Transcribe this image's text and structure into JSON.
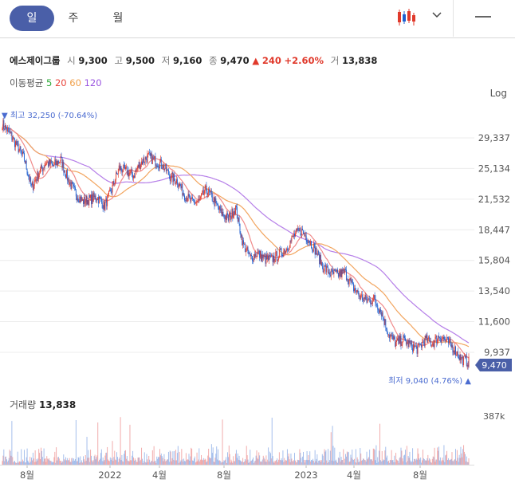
{
  "period_tabs": [
    {
      "label": "일",
      "active": true
    },
    {
      "label": "주",
      "active": false
    },
    {
      "label": "월",
      "active": false
    }
  ],
  "toolbar": {
    "chart_type_icon": "candlestick-icon",
    "dropdown_icon": "chevron-down-icon",
    "menu_icon": "minus-icon"
  },
  "quote": {
    "name": "에스제이그룹",
    "open_label": "시",
    "open": "9,300",
    "high_label": "고",
    "high": "9,500",
    "low_label": "저",
    "low": "9,160",
    "close_label": "종",
    "close": "9,470",
    "change_arrow": "▲",
    "change": "240",
    "change_pct": "+2.60%",
    "volume_label": "거",
    "volume": "13,838"
  },
  "moving_average": {
    "label": "이동평균",
    "periods": [
      {
        "value": "5",
        "color": "#2eaa3a"
      },
      {
        "value": "20",
        "color": "#e8453c"
      },
      {
        "value": "60",
        "color": "#f0a04b"
      },
      {
        "value": "120",
        "color": "#9a55e0"
      }
    ]
  },
  "scale_label": "Log",
  "markers": {
    "max_label": "▼ 최고 32,250 (-70.64%)",
    "min_label": "최저 9,040 (4.76%) ▲",
    "current_price": "9,470"
  },
  "volume_panel": {
    "title": "거래량",
    "value": "13,838",
    "axis_label": "387k"
  },
  "colors": {
    "up": "#e0392b",
    "down": "#1e5fd0",
    "accent": "#4a5fa8",
    "price_line_up": "#f08a8a",
    "volume_up": "#f0a3a3",
    "volume_down": "#9cb8ea"
  },
  "chart_data": {
    "type": "candlestick",
    "scale": "log",
    "y_ticks": [
      "29,337",
      "25,134",
      "21,532",
      "18,447",
      "15,804",
      "13,540",
      "11,600",
      "9,937"
    ],
    "y_tick_values": [
      29337,
      25134,
      21532,
      18447,
      15804,
      13540,
      11600,
      9937
    ],
    "x_ticks": [
      "8월",
      "2022",
      "4월",
      "8월",
      "2023",
      "4월",
      "8월"
    ],
    "price_path": {
      "x_index": [
        0,
        10,
        20,
        30,
        40,
        50,
        60,
        70,
        80,
        90,
        100,
        110,
        120,
        130,
        140,
        150,
        160,
        170,
        180,
        190,
        200,
        210,
        220,
        230,
        240,
        250,
        260,
        270,
        280,
        290,
        300,
        310,
        320,
        330,
        340,
        350,
        360,
        370,
        380,
        390,
        400,
        410,
        420,
        430,
        440,
        450,
        460,
        470,
        480,
        490,
        500,
        510,
        520,
        530,
        540,
        550,
        560,
        570,
        580,
        590,
        600,
        610,
        620,
        630,
        640
      ],
      "close": [
        31500,
        30000,
        28200,
        26400,
        22800,
        24600,
        25900,
        25500,
        26300,
        23800,
        22200,
        21300,
        21500,
        21800,
        20800,
        22600,
        25200,
        24800,
        24300,
        25900,
        26700,
        26100,
        25600,
        24200,
        23600,
        22000,
        21200,
        21300,
        22600,
        21400,
        20100,
        19500,
        20600,
        17200,
        16000,
        16400,
        15900,
        15900,
        16300,
        16800,
        17900,
        18400,
        17600,
        16600,
        15300,
        14800,
        14700,
        14900,
        13900,
        13200,
        12900,
        13000,
        12200,
        10900,
        10400,
        10600,
        10300,
        10100,
        10600,
        10400,
        10800,
        10500,
        10100,
        9600,
        9470
      ]
    },
    "series": [
      {
        "name": "5",
        "color": "#2eaa3a"
      },
      {
        "name": "20",
        "color": "#e8453c"
      },
      {
        "name": "60",
        "color": "#f0a04b"
      },
      {
        "name": "120",
        "color": "#9a55e0"
      }
    ],
    "max": {
      "value": 32250,
      "change_pct": -70.64
    },
    "min": {
      "value": 9040,
      "change_pct": 4.76
    },
    "last": 9470,
    "volume_axis_max": 387000,
    "last_volume": 13838
  }
}
